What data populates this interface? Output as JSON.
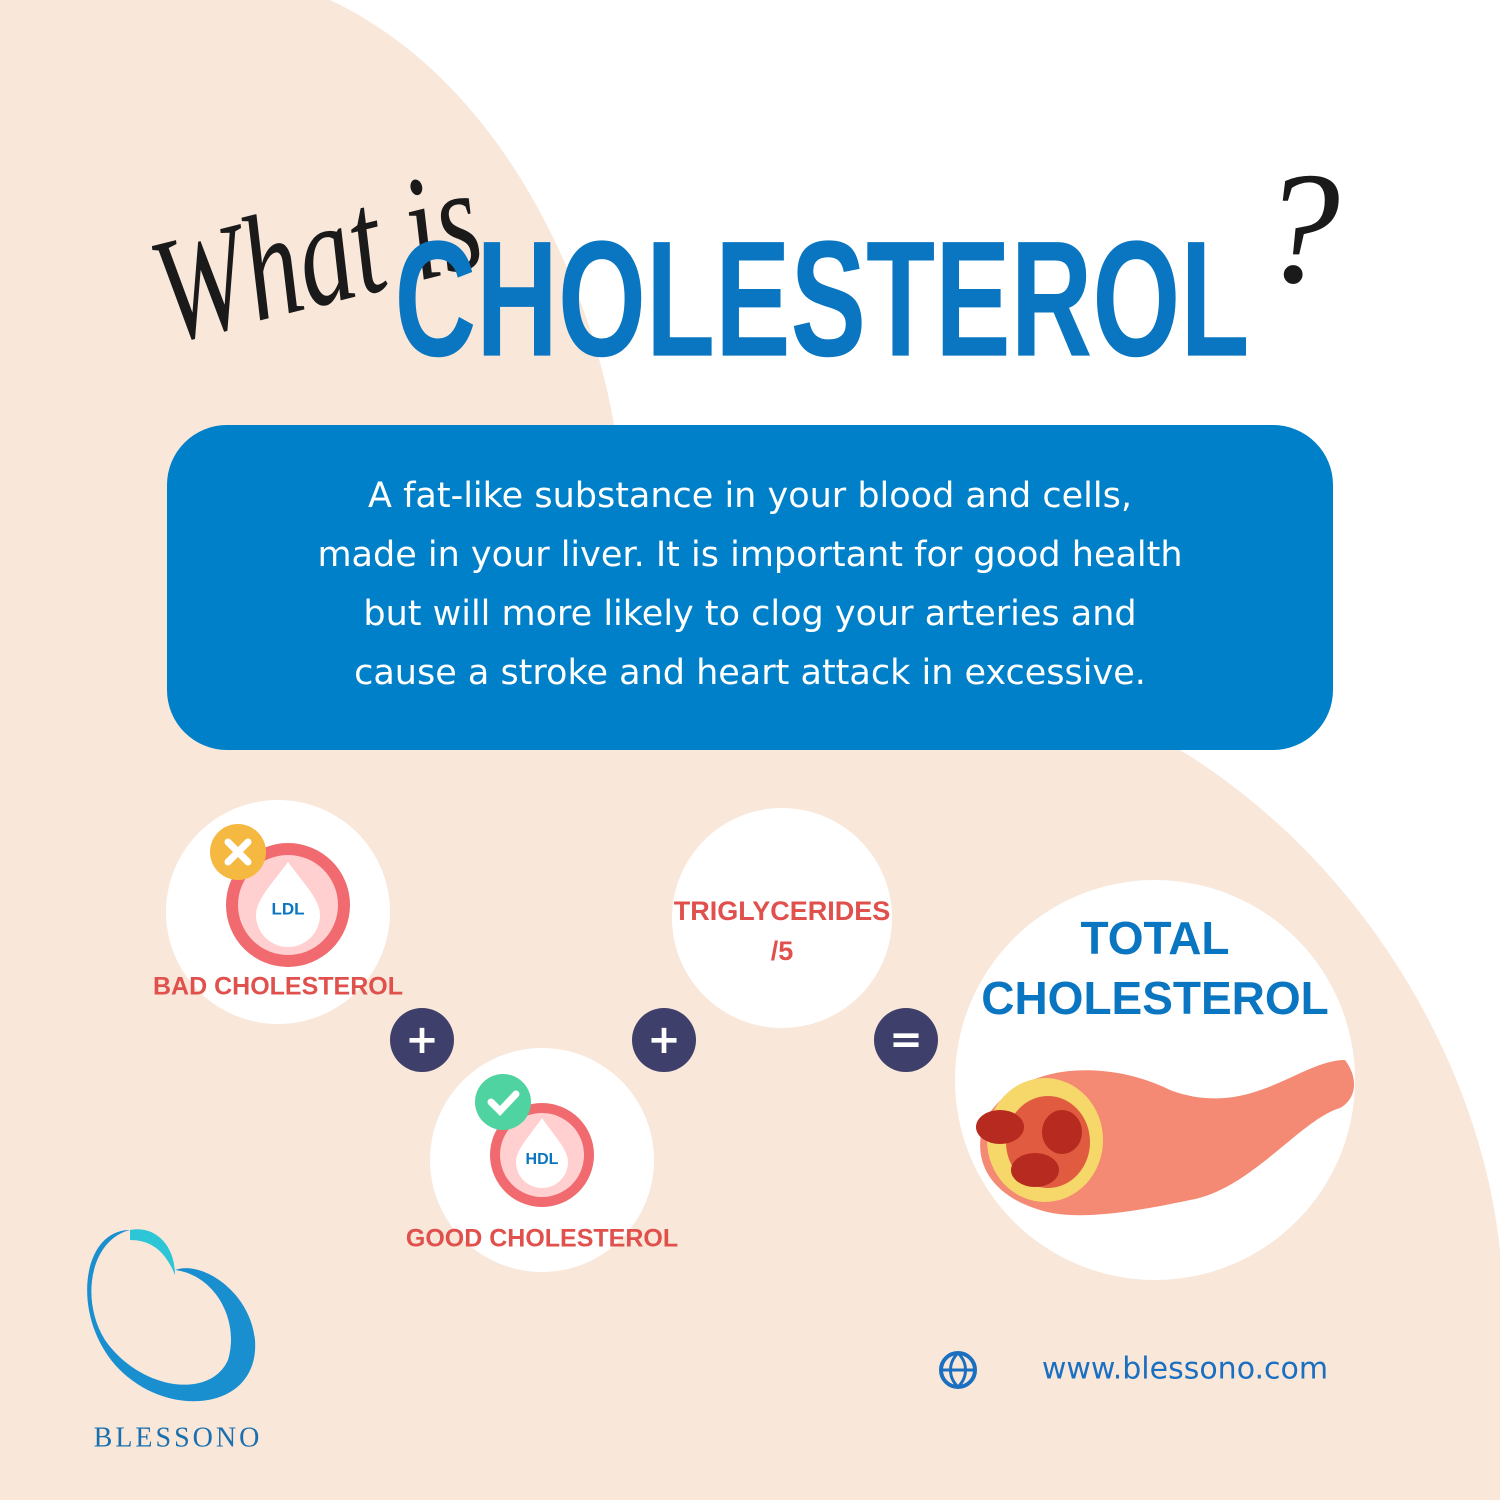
{
  "heading": {
    "script": "What is",
    "main": "CHOLESTEROL",
    "mark": "?"
  },
  "description": {
    "lines": [
      "A fat-like substance in your blood and cells,",
      "made in your liver. It is important for good health",
      "but will more likely to clog your arteries and",
      "cause a stroke and heart attack in excessive."
    ]
  },
  "equation": {
    "ldl": {
      "icon": "LDL",
      "label": "BAD CHOLESTEROL"
    },
    "hdl": {
      "icon": "HDL",
      "label": "GOOD CHOLESTEROL"
    },
    "triglycerides": {
      "lines": [
        "TRIGLYCERIDES",
        "/5"
      ]
    },
    "total": {
      "lines": [
        "TOTAL",
        "CHOLESTEROL"
      ]
    },
    "operators": [
      "+",
      "+",
      "="
    ]
  },
  "footer": {
    "brand": "BLESSONO",
    "website": "www.blessono.com"
  }
}
